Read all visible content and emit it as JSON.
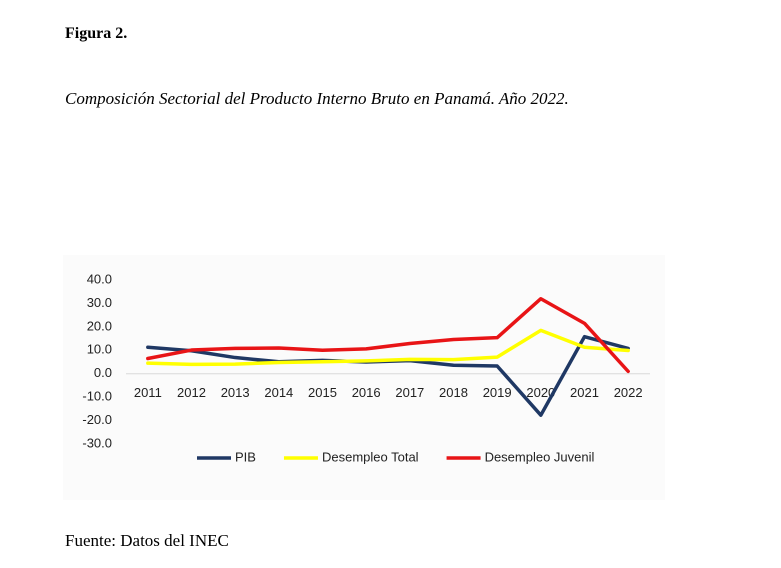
{
  "figure_label": "Figura 2.",
  "caption": "Composición Sectorial del Producto Interno Bruto en Panamá. Año 2022.",
  "chart_data": {
    "type": "line",
    "categories": [
      "2011",
      "2012",
      "2013",
      "2014",
      "2015",
      "2016",
      "2017",
      "2018",
      "2019",
      "2020",
      "2021",
      "2022"
    ],
    "series": [
      {
        "name": "PIB",
        "color": "#1f3864",
        "values": [
          11.3,
          9.8,
          6.9,
          5.1,
          5.7,
          5.0,
          5.6,
          3.6,
          3.3,
          -17.7,
          15.8,
          10.8
        ]
      },
      {
        "name": "Desempleo Total",
        "color": "#ffff00",
        "values": [
          4.5,
          4.0,
          4.1,
          4.8,
          5.1,
          5.5,
          6.1,
          6.0,
          7.1,
          18.5,
          11.3,
          9.9
        ]
      },
      {
        "name": "Desempleo Juvenil",
        "color": "#e81416",
        "values": [
          6.5,
          10.1,
          10.8,
          11.0,
          10.0,
          10.6,
          12.9,
          14.6,
          15.4,
          32.0,
          21.5,
          1.0
        ]
      }
    ],
    "ylim": [
      -30,
      40
    ],
    "yticks": [
      {
        "value": -30,
        "label": "-30.0"
      },
      {
        "value": -20,
        "label": "-20.0"
      },
      {
        "value": -10,
        "label": "-10.0"
      },
      {
        "value": 0,
        "label": "0.0"
      },
      {
        "value": 10,
        "label": "10.0"
      },
      {
        "value": 20,
        "label": "20.0"
      },
      {
        "value": 30,
        "label": "30.0"
      },
      {
        "value": 40,
        "label": "40.0"
      }
    ],
    "legend": "bottom"
  },
  "source": "Fuente: Datos del INEC"
}
